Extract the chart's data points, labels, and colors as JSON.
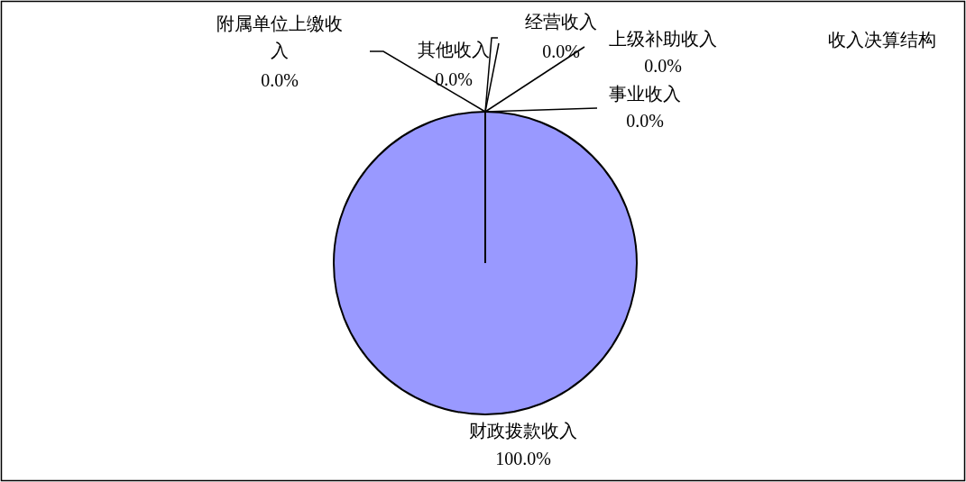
{
  "chart_data": {
    "type": "pie",
    "title": "收入决算结构",
    "categories": [
      "财政拨款收入",
      "事业收入",
      "上级补助收入",
      "经营收入",
      "其他收入",
      "附属单位上缴收入"
    ],
    "values": [
      100,
      0,
      0,
      0,
      0,
      0
    ],
    "colors": [
      "#9999ff",
      "#993366",
      "#ffffcc",
      "#ccffff",
      "#660066",
      "#ff8080"
    ],
    "value_labels": [
      "100.0%",
      "0.0%",
      "0.0%",
      "0.0%",
      "0.0%",
      "0.0%"
    ],
    "legend": false
  }
}
